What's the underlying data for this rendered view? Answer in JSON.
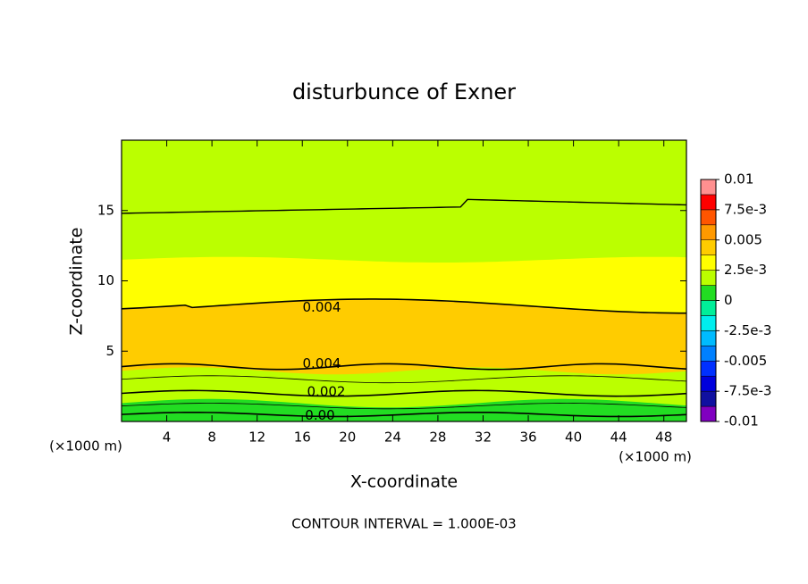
{
  "chart_data": {
    "type": "contour",
    "title": "disturbunce of Exner",
    "x_label": "X-coordinate",
    "y_label": "Z-coordinate",
    "x_unit_label": "(×1000 m)",
    "y_unit_label": "(×1000 m)",
    "footnote": "CONTOUR INTERVAL = 1.000E-03",
    "xlim": [
      0,
      50
    ],
    "xticks": [
      4,
      8,
      12,
      16,
      20,
      24,
      28,
      32,
      36,
      40,
      44,
      48
    ],
    "ylim": [
      0,
      20
    ],
    "yticks": [
      5,
      10,
      15
    ],
    "contour_labels": [
      0.004,
      0.004,
      0.002,
      {
        "value": 0,
        "label": "0.00"
      }
    ],
    "colorbar": {
      "levels": [
        -0.01,
        -0.00875,
        -0.0075,
        -0.00625,
        -0.005,
        -0.00375,
        -0.0025,
        -0.00125,
        0,
        0.00125,
        0.0025,
        0.00375,
        0.005,
        0.00625,
        0.0075,
        0.00875,
        0.01
      ],
      "colors": [
        "#8000c0",
        "#1010a0",
        "#0000dd",
        "#0030ff",
        "#0080ff",
        "#00bbff",
        "#00eeee",
        "#00ee99",
        "#22dd22",
        "#bbff00",
        "#ffff00",
        "#ffcc00",
        "#ff9900",
        "#ff5500",
        "#ff0000",
        "#ff9090"
      ],
      "ticks": [
        0.01,
        {
          "value": 0.0075,
          "label": "7.5e-3"
        },
        0.005,
        {
          "value": 0.0025,
          "label": "2.5e-3"
        },
        0,
        {
          "value": -0.0025,
          "label": "-2.5e-3"
        },
        -0.005,
        {
          "value": -0.0075,
          "label": "-7.5e-3"
        },
        -0.01
      ]
    }
  }
}
